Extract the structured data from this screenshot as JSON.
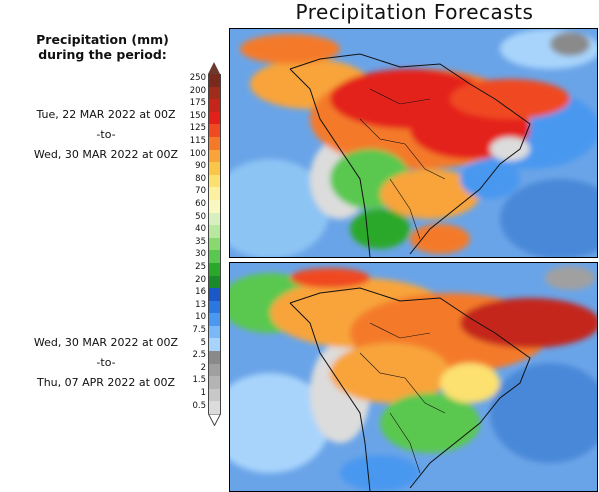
{
  "title": "Precipitation Forecasts",
  "legend": {
    "title_line1": "Precipitation (mm)",
    "title_line2": "during the period:",
    "levels": [
      "250",
      "200",
      "175",
      "150",
      "125",
      "115",
      "100",
      "90",
      "80",
      "70",
      "60",
      "50",
      "40",
      "35",
      "30",
      "25",
      "20",
      "16",
      "13",
      "10",
      "7.5",
      "5",
      "2.5",
      "2",
      "1.5",
      "1",
      "0.5"
    ],
    "colors": [
      "#7a2a1c",
      "#a02c1c",
      "#c4261c",
      "#e4201a",
      "#f04a22",
      "#f47a2a",
      "#f8a43a",
      "#fac64a",
      "#fce070",
      "#fdf0a0",
      "#f8f8c0",
      "#d8f0c0",
      "#b8e8a0",
      "#8ad870",
      "#5ac850",
      "#2aa82a",
      "#1a8a2a",
      "#1a58c8",
      "#2a78e0",
      "#4a98f0",
      "#7ab8f8",
      "#a8d4fc",
      "#8a8a8a",
      "#a0a0a0",
      "#b4b4b4",
      "#c8c8c8",
      "#dcdcdc"
    ],
    "top_arrow_color": "#6b3a2e",
    "bottom_arrow_color": "#ffffff"
  },
  "periods": [
    {
      "start": "Tue, 22 MAR 2022 at 00Z",
      "sep": "-to-",
      "end": "Wed, 30 MAR 2022 at 00Z"
    },
    {
      "start": "Wed, 30 MAR 2022 at 00Z",
      "sep": "-to-",
      "end": "Thu, 07 APR 2022 at 00Z"
    }
  ]
}
